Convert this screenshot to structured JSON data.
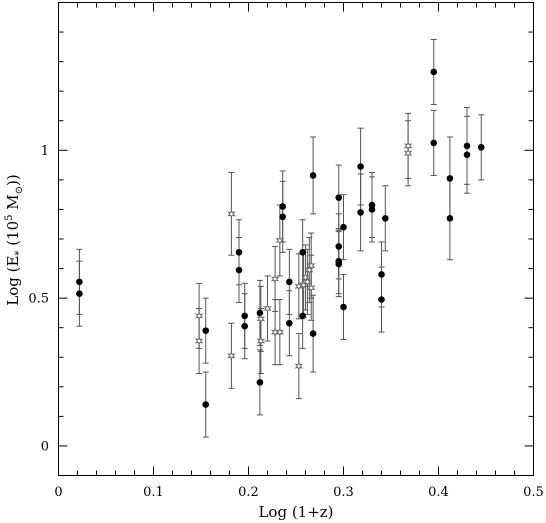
{
  "chart_data": {
    "type": "scatter",
    "title": "",
    "xlabel": "Log (1+z)",
    "ylabel_parts": {
      "prefix": "Log (E",
      "sub": "*",
      "mid": " (10",
      "sup": "5",
      "unit": " M",
      "unit_sub": "⊙",
      "suffix": "))"
    },
    "xlim": [
      0,
      0.5
    ],
    "ylim": [
      -0.1,
      1.5
    ],
    "xticks": [
      0,
      0.1,
      0.2,
      0.3,
      0.4,
      0.5
    ],
    "xtick_labels": [
      "0",
      "0.1",
      "0.2",
      "0.3",
      "0.4",
      "0.5"
    ],
    "yticks": [
      0,
      0.5,
      1
    ],
    "ytick_labels": [
      "0",
      "0.5",
      "1"
    ],
    "grid": false,
    "series": [
      {
        "marker": "filled-circle",
        "color": "#000000",
        "points": [
          {
            "x": 0.022,
            "y": 0.555,
            "lo": 0.11,
            "hi": 0.11
          },
          {
            "x": 0.022,
            "y": 0.515,
            "lo": 0.11,
            "hi": 0.11
          },
          {
            "x": 0.155,
            "y": 0.39,
            "lo": 0.11,
            "hi": 0.11
          },
          {
            "x": 0.155,
            "y": 0.14,
            "lo": 0.11,
            "hi": 0.11
          },
          {
            "x": 0.19,
            "y": 0.655,
            "lo": 0.11,
            "hi": 0.11
          },
          {
            "x": 0.19,
            "y": 0.595,
            "lo": 0.11,
            "hi": 0.11
          },
          {
            "x": 0.196,
            "y": 0.44,
            "lo": 0.11,
            "hi": 0.11
          },
          {
            "x": 0.196,
            "y": 0.405,
            "lo": 0.11,
            "hi": 0.11
          },
          {
            "x": 0.212,
            "y": 0.45,
            "lo": 0.11,
            "hi": 0.11
          },
          {
            "x": 0.212,
            "y": 0.215,
            "lo": 0.11,
            "hi": 0.11
          },
          {
            "x": 0.236,
            "y": 0.81,
            "lo": 0.12,
            "hi": 0.12
          },
          {
            "x": 0.236,
            "y": 0.775,
            "lo": 0.12,
            "hi": 0.12
          },
          {
            "x": 0.243,
            "y": 0.555,
            "lo": 0.11,
            "hi": 0.11
          },
          {
            "x": 0.243,
            "y": 0.415,
            "lo": 0.11,
            "hi": 0.11
          },
          {
            "x": 0.257,
            "y": 0.655,
            "lo": 0.11,
            "hi": 0.11
          },
          {
            "x": 0.257,
            "y": 0.44,
            "lo": 0.11,
            "hi": 0.11
          },
          {
            "x": 0.268,
            "y": 0.915,
            "lo": 0.13,
            "hi": 0.13
          },
          {
            "x": 0.268,
            "y": 0.38,
            "lo": 0.13,
            "hi": 0.13
          },
          {
            "x": 0.295,
            "y": 0.84,
            "lo": 0.11,
            "hi": 0.11
          },
          {
            "x": 0.295,
            "y": 0.675,
            "lo": 0.11,
            "hi": 0.11
          },
          {
            "x": 0.295,
            "y": 0.625,
            "lo": 0.11,
            "hi": 0.11
          },
          {
            "x": 0.295,
            "y": 0.615,
            "lo": 0.11,
            "hi": 0.11
          },
          {
            "x": 0.3,
            "y": 0.74,
            "lo": 0.11,
            "hi": 0.11
          },
          {
            "x": 0.3,
            "y": 0.47,
            "lo": 0.11,
            "hi": 0.11
          },
          {
            "x": 0.318,
            "y": 0.945,
            "lo": 0.13,
            "hi": 0.13
          },
          {
            "x": 0.318,
            "y": 0.79,
            "lo": 0.13,
            "hi": 0.13
          },
          {
            "x": 0.33,
            "y": 0.815,
            "lo": 0.11,
            "hi": 0.11
          },
          {
            "x": 0.33,
            "y": 0.8,
            "lo": 0.11,
            "hi": 0.11
          },
          {
            "x": 0.34,
            "y": 0.58,
            "lo": 0.11,
            "hi": 0.11
          },
          {
            "x": 0.34,
            "y": 0.495,
            "lo": 0.11,
            "hi": 0.11
          },
          {
            "x": 0.344,
            "y": 0.77,
            "lo": 0.11,
            "hi": 0.11
          },
          {
            "x": 0.395,
            "y": 1.265,
            "lo": 0.11,
            "hi": 0.11
          },
          {
            "x": 0.395,
            "y": 1.025,
            "lo": 0.11,
            "hi": 0.11
          },
          {
            "x": 0.412,
            "y": 0.905,
            "lo": 0.14,
            "hi": 0.14
          },
          {
            "x": 0.412,
            "y": 0.77,
            "lo": 0.14,
            "hi": 0.14
          },
          {
            "x": 0.43,
            "y": 1.015,
            "lo": 0.13,
            "hi": 0.13
          },
          {
            "x": 0.43,
            "y": 0.985,
            "lo": 0.13,
            "hi": 0.13
          },
          {
            "x": 0.445,
            "y": 1.01,
            "lo": 0.11,
            "hi": 0.11
          }
        ]
      },
      {
        "marker": "open-star",
        "color": "#666666",
        "points": [
          {
            "x": 0.148,
            "y": 0.44,
            "lo": 0.11,
            "hi": 0.11
          },
          {
            "x": 0.148,
            "y": 0.355,
            "lo": 0.11,
            "hi": 0.11
          },
          {
            "x": 0.182,
            "y": 0.785,
            "lo": 0.14,
            "hi": 0.14
          },
          {
            "x": 0.182,
            "y": 0.305,
            "lo": 0.11,
            "hi": 0.11
          },
          {
            "x": 0.213,
            "y": 0.355,
            "lo": 0.11,
            "hi": 0.11
          },
          {
            "x": 0.213,
            "y": 0.43,
            "lo": 0.11,
            "hi": 0.11
          },
          {
            "x": 0.22,
            "y": 0.465,
            "lo": 0.11,
            "hi": 0.11
          },
          {
            "x": 0.228,
            "y": 0.565,
            "lo": 0.11,
            "hi": 0.11
          },
          {
            "x": 0.228,
            "y": 0.385,
            "lo": 0.11,
            "hi": 0.11
          },
          {
            "x": 0.233,
            "y": 0.695,
            "lo": 0.12,
            "hi": 0.12
          },
          {
            "x": 0.233,
            "y": 0.385,
            "lo": 0.11,
            "hi": 0.11
          },
          {
            "x": 0.253,
            "y": 0.54,
            "lo": 0.11,
            "hi": 0.11
          },
          {
            "x": 0.253,
            "y": 0.27,
            "lo": 0.11,
            "hi": 0.11
          },
          {
            "x": 0.258,
            "y": 0.545,
            "lo": 0.11,
            "hi": 0.11
          },
          {
            "x": 0.26,
            "y": 0.57,
            "lo": 0.11,
            "hi": 0.11
          },
          {
            "x": 0.262,
            "y": 0.555,
            "lo": 0.11,
            "hi": 0.11
          },
          {
            "x": 0.264,
            "y": 0.595,
            "lo": 0.11,
            "hi": 0.11
          },
          {
            "x": 0.266,
            "y": 0.61,
            "lo": 0.11,
            "hi": 0.11
          },
          {
            "x": 0.266,
            "y": 0.535,
            "lo": 0.11,
            "hi": 0.11
          },
          {
            "x": 0.368,
            "y": 1.015,
            "lo": 0.11,
            "hi": 0.11
          },
          {
            "x": 0.368,
            "y": 0.99,
            "lo": 0.11,
            "hi": 0.11
          }
        ]
      }
    ]
  }
}
